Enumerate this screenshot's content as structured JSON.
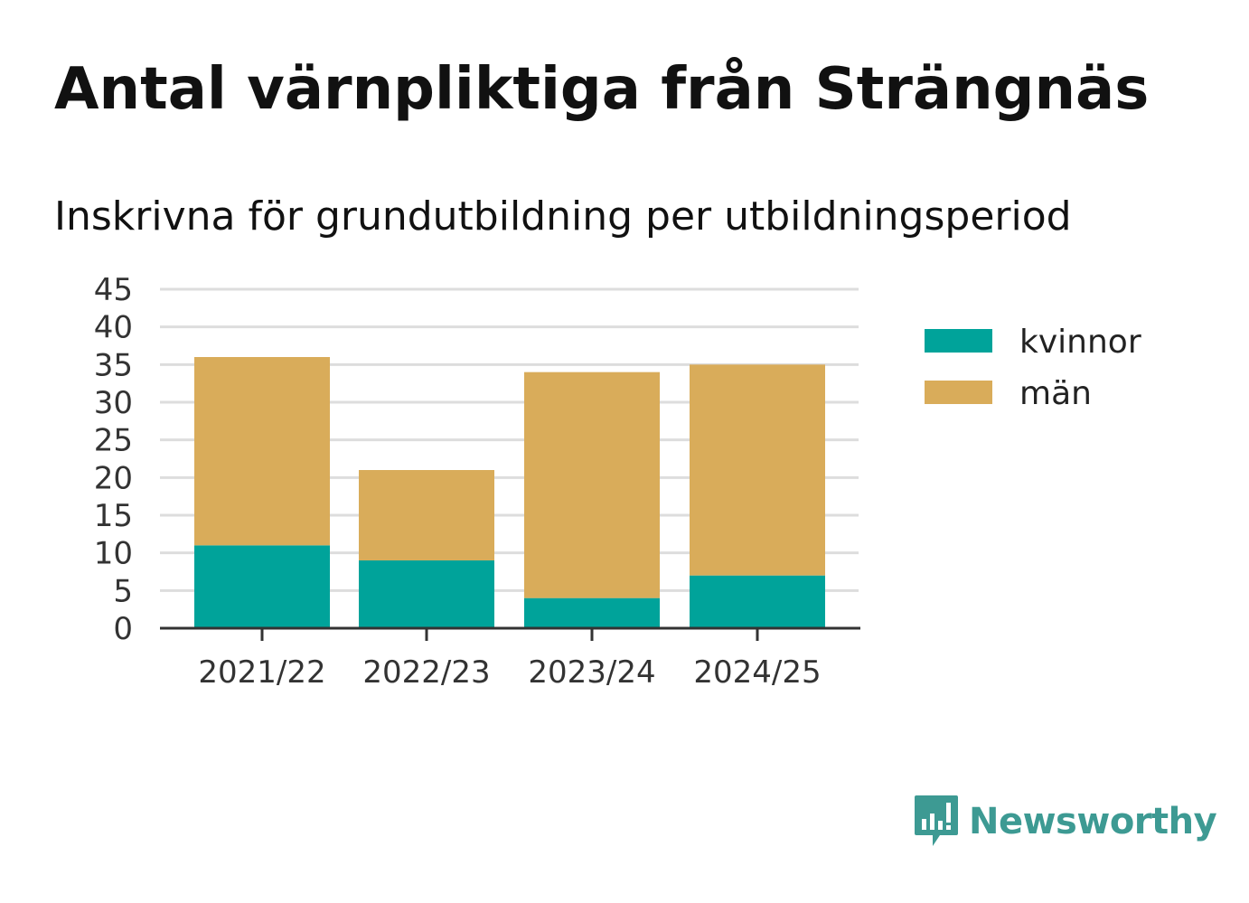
{
  "header": {
    "title": "Antal värnpliktiga från Strängnäs",
    "subtitle": "Inskrivna för grundutbildning per utbildningsperiod"
  },
  "chart_data": {
    "type": "bar",
    "stacked": true,
    "categories": [
      "2021/22",
      "2022/23",
      "2023/24",
      "2024/25"
    ],
    "series": [
      {
        "name": "kvinnor",
        "values": [
          11,
          9,
          4,
          7
        ],
        "color": "#00a39a"
      },
      {
        "name": "män",
        "values": [
          25,
          12,
          30,
          28
        ],
        "color": "#d9ac5a"
      }
    ],
    "ylim": [
      0,
      45
    ],
    "yticks": [
      0,
      5,
      10,
      15,
      20,
      25,
      30,
      35,
      40,
      45
    ],
    "grid": true,
    "legend": "right",
    "xlabel": "",
    "ylabel": ""
  },
  "branding": {
    "name": "Newsworthy",
    "icon": "newsworthy-logo-icon",
    "color": "#3d9a93"
  }
}
